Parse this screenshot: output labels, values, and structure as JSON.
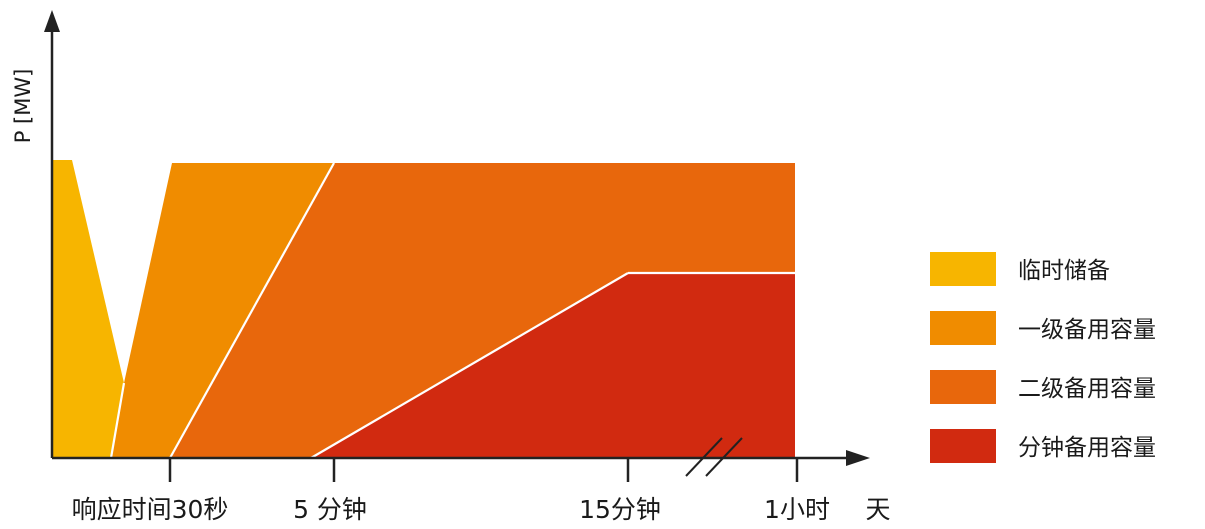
{
  "chart_data": {
    "type": "area",
    "ylabel": "P [MW]",
    "xlabel": "",
    "ticks": [
      {
        "label": "响应时间30秒"
      },
      {
        "label": "5 分钟"
      },
      {
        "label": "15分钟"
      },
      {
        "label": "1小时"
      }
    ],
    "axis_end_label": "天",
    "axis_break": true,
    "series": [
      {
        "name": "临时储备",
        "color": "#F7B500"
      },
      {
        "name": "一级备用容量",
        "color": "#F08C00"
      },
      {
        "name": "二级备用容量",
        "color": "#E8670C"
      },
      {
        "name": "分钟备用容量",
        "color": "#D12A10"
      }
    ],
    "legend_position": "right",
    "grid": false
  }
}
